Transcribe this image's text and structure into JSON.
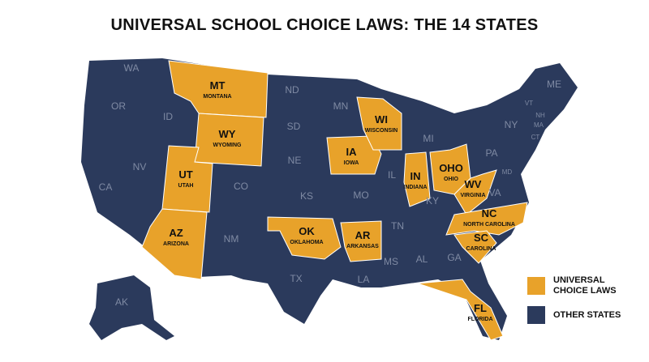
{
  "title": "UNIVERSAL SCHOOL CHOICE LAWS: THE 14 STATES",
  "highlight_color": "#e8a22a",
  "base_color": "#2b3a5c",
  "universal_states": [
    {
      "abbr": "MT",
      "name": "MONTANA"
    },
    {
      "abbr": "WY",
      "name": "WYOMING"
    },
    {
      "abbr": "UT",
      "name": "UTAH"
    },
    {
      "abbr": "AZ",
      "name": "ARIZONA"
    },
    {
      "abbr": "IA",
      "name": "IOWA"
    },
    {
      "abbr": "WI",
      "name": "WISCONSIN"
    },
    {
      "abbr": "IN",
      "name": "INDIANA"
    },
    {
      "abbr": "OHO",
      "name": "OHIO"
    },
    {
      "abbr": "WV",
      "name": "VIRGINIA"
    },
    {
      "abbr": "OK",
      "name": "OKLAHOMA"
    },
    {
      "abbr": "AR",
      "name": "ARKANSAS"
    },
    {
      "abbr": "NC",
      "name": "NORTH CAROLINA"
    },
    {
      "abbr": "SC",
      "name": "CAROLINA"
    },
    {
      "abbr": "FL",
      "name": "FLORIDA"
    }
  ],
  "other_states": [
    "WA",
    "OR",
    "ID",
    "NV",
    "CA",
    "ND",
    "SD",
    "NE",
    "CO",
    "KS",
    "NM",
    "TX",
    "MN",
    "MO",
    "IL",
    "LA",
    "MS",
    "AL",
    "GA",
    "TN",
    "KY",
    "MI",
    "PA",
    "NY",
    "VA",
    "ME",
    "VT",
    "NH",
    "MA",
    "CT",
    "MD",
    "AK"
  ],
  "legend": [
    {
      "label": "UNIVERSAL CHOICE LAWS"
    },
    {
      "label": "OTHER STATES"
    }
  ]
}
